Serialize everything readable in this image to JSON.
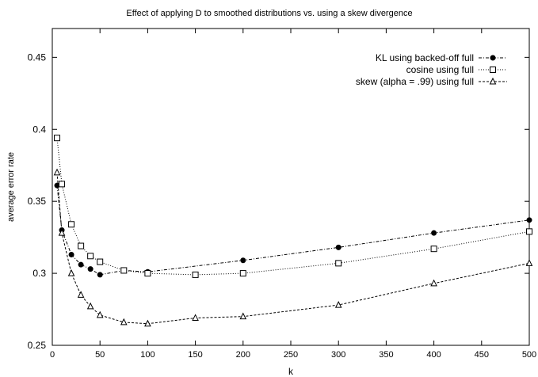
{
  "chart_data": {
    "type": "line",
    "title": "Effect of applying D to smoothed distributions vs. using a skew divergence",
    "xlabel": "k",
    "ylabel": "average error rate",
    "xlim": [
      0,
      500
    ],
    "ylim": [
      0.25,
      0.47
    ],
    "xticks": [
      "0",
      "50",
      "100",
      "150",
      "200",
      "250",
      "300",
      "350",
      "400",
      "450",
      "500"
    ],
    "yticks": [
      "0.25",
      "0.3",
      "0.35",
      "0.4",
      "0.45"
    ],
    "grid": false,
    "legend_position": "top-right",
    "series": [
      {
        "name": "KL using backed-off full",
        "marker": "filled-circle",
        "line": "dash-dot",
        "x": [
          5,
          10,
          20,
          30,
          40,
          50,
          75,
          100,
          200,
          300,
          400,
          500
        ],
        "y": [
          0.361,
          0.33,
          0.313,
          0.306,
          0.303,
          0.299,
          0.302,
          0.301,
          0.309,
          0.318,
          0.328,
          0.337
        ]
      },
      {
        "name": "cosine using full",
        "marker": "open-square",
        "line": "dotted",
        "x": [
          5,
          10,
          20,
          30,
          40,
          50,
          75,
          100,
          150,
          200,
          300,
          400,
          500
        ],
        "y": [
          0.394,
          0.362,
          0.334,
          0.319,
          0.312,
          0.308,
          0.302,
          0.3,
          0.299,
          0.3,
          0.307,
          0.317,
          0.329
        ]
      },
      {
        "name": "skew (alpha = .99) using full",
        "marker": "open-triangle",
        "line": "dashed",
        "x": [
          5,
          10,
          20,
          30,
          40,
          50,
          75,
          100,
          150,
          200,
          300,
          400,
          500
        ],
        "y": [
          0.37,
          0.328,
          0.3,
          0.285,
          0.277,
          0.271,
          0.266,
          0.265,
          0.269,
          0.27,
          0.278,
          0.293,
          0.307
        ]
      }
    ]
  }
}
